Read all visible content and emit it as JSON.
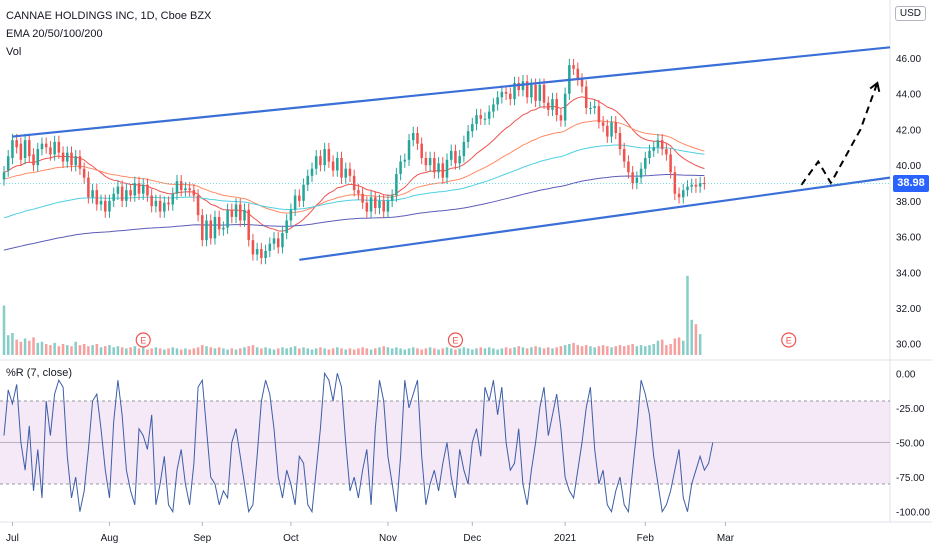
{
  "header": {
    "symbol": "CANNAE HOLDINGS INC, 1D, Cboe BZX",
    "ema": "EMA 20/50/100/200",
    "vol": "Vol",
    "currency": "USD",
    "wr": "%R (7, close)"
  },
  "colors": {
    "up": "#26a69a",
    "down": "#ef5350",
    "trendline": "#3a6fd8",
    "ema20": "#ef5350",
    "ema50": "#ff8a65",
    "ema100": "#4dd0e1",
    "ema200": "#5c5cb8",
    "wr": "#3d5ea8",
    "wr_band": "#e1bee7",
    "price_tag": "#2962ff"
  },
  "chart_data": [
    {
      "type": "candlestick",
      "x_unit": "trading day",
      "x_range": [
        0,
        200
      ],
      "xticks": [
        {
          "label": "Jul",
          "x": 2
        },
        {
          "label": "Aug",
          "x": 25
        },
        {
          "label": "Sep",
          "x": 47
        },
        {
          "label": "Oct",
          "x": 68
        },
        {
          "label": "Nov",
          "x": 91
        },
        {
          "label": "Dec",
          "x": 111
        },
        {
          "label": "2021",
          "x": 133
        },
        {
          "label": "Feb",
          "x": 152
        },
        {
          "label": "Mar",
          "x": 171
        }
      ],
      "ylim": [
        29.2,
        48.8
      ],
      "yticks": [
        30,
        32,
        34,
        36,
        38,
        40,
        42,
        44,
        46
      ],
      "last_price": "38.98",
      "closes": [
        39.6,
        40.5,
        41.4,
        41.0,
        40.3,
        41.4,
        40.5,
        40.0,
        40.9,
        41.2,
        41.0,
        40.6,
        41.3,
        40.7,
        40.2,
        40.7,
        40.0,
        40.5,
        39.8,
        39.3,
        38.2,
        38.6,
        37.8,
        38.0,
        37.4,
        38.0,
        38.4,
        38.8,
        38.0,
        38.6,
        38.3,
        39.0,
        38.4,
        38.9,
        38.3,
        37.7,
        38.0,
        37.4,
        37.9,
        37.8,
        38.4,
        39.1,
        38.6,
        38.7,
        38.6,
        38.3,
        37.2,
        35.8,
        36.9,
        35.9,
        37.1,
        36.4,
        36.5,
        37.5,
        37.1,
        37.8,
        36.9,
        37.5,
        35.8,
        35.0,
        35.3,
        34.8,
        35.2,
        35.6,
        35.9,
        35.4,
        36.2,
        36.9,
        37.5,
        38.3,
        38.0,
        38.9,
        39.4,
        39.8,
        40.5,
        40.0,
        40.9,
        40.2,
        39.7,
        40.4,
        39.3,
        39.8,
        39.4,
        38.6,
        38.4,
        37.9,
        37.4,
        38.2,
        37.6,
        38.0,
        37.4,
        38.0,
        38.3,
        39.5,
        40.2,
        40.3,
        41.4,
        41.8,
        41.2,
        40.4,
        40.0,
        40.4,
        39.6,
        40.1,
        39.3,
        40.3,
        40.8,
        40.1,
        40.5,
        41.3,
        41.9,
        42.3,
        42.8,
        42.6,
        42.6,
        43.0,
        43.4,
        43.8,
        44.1,
        44.0,
        43.7,
        44.6,
        44.2,
        44.7,
        43.8,
        44.5,
        43.6,
        44.5,
        43.5,
        43.1,
        43.7,
        42.8,
        42.5,
        44.0,
        45.6,
        45.4,
        44.8,
        44.4,
        43.2,
        43.2,
        43.3,
        42.4,
        42.2,
        41.6,
        42.4,
        41.8,
        40.9,
        40.2,
        39.6,
        39.0,
        39.3,
        39.8,
        40.4,
        40.8,
        41.0,
        41.4,
        40.9,
        40.6,
        39.6,
        38.4,
        38.2,
        38.6,
        38.8,
        38.9,
        38.8,
        39.0,
        38.98
      ],
      "opens": [
        39.2,
        39.7,
        40.4,
        41.4,
        41.2,
        40.4,
        41.4,
        40.6,
        40.0,
        40.9,
        41.2,
        41.0,
        40.6,
        41.3,
        40.7,
        40.2,
        40.7,
        40.0,
        40.5,
        39.8,
        39.3,
        38.2,
        38.6,
        37.8,
        38.0,
        37.4,
        38.0,
        38.4,
        38.8,
        38.0,
        38.6,
        38.3,
        39.0,
        38.4,
        38.9,
        38.3,
        37.7,
        38.0,
        37.4,
        37.9,
        37.8,
        38.4,
        39.1,
        38.6,
        38.7,
        38.6,
        38.3,
        37.2,
        35.8,
        36.9,
        35.9,
        37.1,
        36.4,
        36.5,
        37.5,
        37.1,
        37.8,
        36.9,
        37.5,
        35.8,
        35.0,
        35.3,
        34.8,
        35.2,
        35.6,
        35.9,
        35.4,
        36.2,
        36.9,
        37.5,
        38.3,
        38.0,
        38.9,
        39.4,
        39.8,
        40.5,
        40.0,
        40.9,
        40.2,
        39.7,
        40.4,
        39.3,
        39.8,
        39.4,
        38.6,
        38.4,
        37.9,
        37.4,
        38.2,
        37.6,
        38.0,
        37.4,
        38.0,
        38.3,
        39.5,
        40.2,
        40.3,
        41.4,
        41.8,
        41.2,
        40.4,
        40.0,
        40.4,
        39.6,
        40.1,
        39.3,
        40.3,
        40.8,
        40.1,
        40.5,
        41.3,
        41.9,
        42.3,
        42.8,
        42.6,
        42.6,
        43.0,
        43.4,
        43.8,
        44.1,
        44.0,
        43.7,
        44.6,
        44.2,
        44.7,
        43.8,
        44.5,
        43.6,
        44.5,
        43.5,
        43.1,
        43.7,
        42.8,
        42.5,
        44.0,
        45.6,
        45.4,
        44.8,
        44.4,
        43.2,
        43.2,
        43.3,
        42.4,
        42.2,
        41.6,
        42.4,
        41.8,
        40.9,
        40.2,
        39.6,
        39.0,
        39.3,
        39.8,
        40.4,
        40.8,
        41.0,
        41.4,
        40.9,
        40.6,
        39.6,
        38.4,
        38.2,
        38.6,
        38.8,
        38.9,
        38.8,
        39.0
      ],
      "volume_scale": [
        4.5,
        1.8,
        2.0,
        1.4,
        1.2,
        1.5,
        1.3,
        1.6,
        1.1,
        1.2,
        1.0,
        0.9,
        1.1,
        0.8,
        1.0,
        0.9,
        0.8,
        1.2,
        0.9,
        1.0,
        0.8,
        0.9,
        1.0,
        0.7,
        0.8,
        0.9,
        0.7,
        0.8,
        0.7,
        0.6,
        0.7,
        0.8,
        0.6,
        0.7,
        0.5,
        0.6,
        0.7,
        0.6,
        0.5,
        0.6,
        0.7,
        0.6,
        0.5,
        0.6,
        0.5,
        0.6,
        0.7,
        0.9,
        0.8,
        0.7,
        0.6,
        0.7,
        0.6,
        0.5,
        0.6,
        0.5,
        0.6,
        0.7,
        0.8,
        0.9,
        0.7,
        0.6,
        0.7,
        0.6,
        0.5,
        0.6,
        0.7,
        0.6,
        0.7,
        0.8,
        0.6,
        0.7,
        0.6,
        0.5,
        0.6,
        0.7,
        0.6,
        0.5,
        0.6,
        0.7,
        0.6,
        0.5,
        0.6,
        0.5,
        0.6,
        0.7,
        0.6,
        0.5,
        0.6,
        0.7,
        0.8,
        0.7,
        0.6,
        0.7,
        0.6,
        0.5,
        0.6,
        0.7,
        0.6,
        0.5,
        0.6,
        0.7,
        0.6,
        0.5,
        0.6,
        0.7,
        0.6,
        0.5,
        0.6,
        0.7,
        0.6,
        0.5,
        0.6,
        0.7,
        0.6,
        0.7,
        0.6,
        0.5,
        0.6,
        0.7,
        0.6,
        0.7,
        0.8,
        0.7,
        0.6,
        0.7,
        0.8,
        0.7,
        0.6,
        0.7,
        0.6,
        0.7,
        0.8,
        0.9,
        1.0,
        1.1,
        0.9,
        0.8,
        0.9,
        0.8,
        0.7,
        0.8,
        0.9,
        0.8,
        0.7,
        0.8,
        0.9,
        0.8,
        0.9,
        1.0,
        0.8,
        0.9,
        0.8,
        0.9,
        1.0,
        1.3,
        1.4,
        0.9,
        1.0,
        1.5,
        1.6,
        1.3,
        7.2,
        3.2,
        2.8,
        1.9
      ],
      "earnings_markers": [
        {
          "label": "E",
          "x": 33
        },
        {
          "label": "E",
          "x": 107
        },
        {
          "label": "E",
          "x": 186
        }
      ],
      "trendlines": [
        {
          "from": [
            2,
            41.6
          ],
          "to": [
            210,
            46.6
          ]
        },
        {
          "from": [
            70,
            34.7
          ],
          "to": [
            210,
            39.3
          ]
        }
      ],
      "projection": [
        [
          189,
          38.9
        ],
        [
          193,
          40.2
        ],
        [
          196,
          39.0
        ],
        [
          203,
          42.0
        ],
        [
          207,
          44.6
        ]
      ]
    },
    {
      "type": "line",
      "title": "%R (7, close)",
      "ylim": [
        -106,
        6
      ],
      "yticks": [
        0,
        -25,
        -50,
        -75,
        -100
      ],
      "ytick_labels": [
        "0.00",
        "-25.00",
        "-50.00",
        "-75.00",
        "-100.00"
      ],
      "bands": [
        -20,
        -80
      ],
      "midline": -50,
      "values": [
        -45,
        -12,
        -22,
        -8,
        -50,
        -70,
        -38,
        -85,
        -55,
        -90,
        -20,
        -45,
        -15,
        -5,
        -10,
        -60,
        -90,
        -75,
        -100,
        -85,
        -55,
        -20,
        -15,
        -40,
        -70,
        -90,
        -35,
        -5,
        -30,
        -70,
        -85,
        -95,
        -40,
        -45,
        -55,
        -30,
        -95,
        -80,
        -60,
        -95,
        -100,
        -70,
        -55,
        -80,
        -95,
        -65,
        -10,
        -5,
        -40,
        -75,
        -80,
        -95,
        -85,
        -90,
        -50,
        -40,
        -60,
        -80,
        -100,
        -95,
        -60,
        -20,
        -5,
        -15,
        -40,
        -75,
        -90,
        -70,
        -80,
        -95,
        -60,
        -65,
        -95,
        -100,
        -70,
        -40,
        0,
        -5,
        -20,
        0,
        -10,
        -50,
        -85,
        -75,
        -90,
        -70,
        -55,
        -95,
        -40,
        -5,
        -20,
        -60,
        -80,
        -100,
        -60,
        -5,
        -25,
        -15,
        -5,
        -60,
        -95,
        -80,
        -70,
        -85,
        -65,
        -50,
        -75,
        -90,
        -55,
        -70,
        -80,
        -50,
        -40,
        -60,
        -10,
        -20,
        -5,
        -30,
        -10,
        -50,
        -70,
        -65,
        -40,
        -80,
        -95,
        -70,
        -50,
        -25,
        -10,
        -45,
        -30,
        -15,
        -40,
        -75,
        -85,
        -90,
        -70,
        -50,
        -25,
        -10,
        -55,
        -80,
        -70,
        -95,
        -100,
        -85,
        -75,
        -95,
        -100,
        -70,
        -40,
        -5,
        -15,
        -30,
        -60,
        -80,
        -100,
        -95,
        -85,
        -70,
        -55,
        -90,
        -100,
        -80,
        -70,
        -60,
        -70,
        -65,
        -50
      ]
    }
  ]
}
